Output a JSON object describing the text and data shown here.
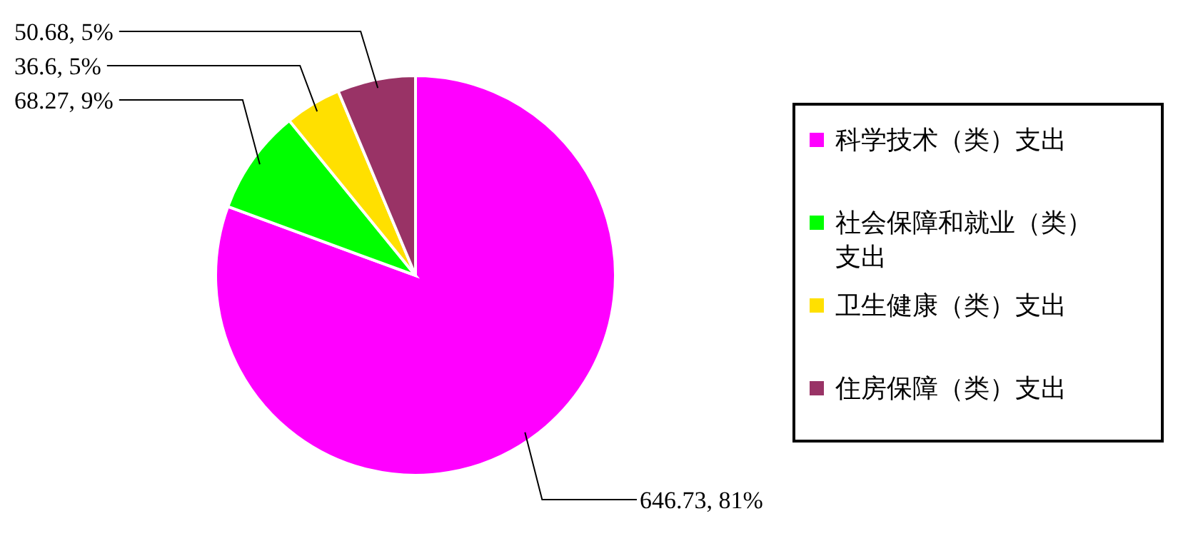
{
  "chart_data": {
    "type": "pie",
    "categories": [
      "科学技术（类）支出",
      "社会保障和就业（类）支出",
      "卫生健康（类）支出",
      "住房保障（类）支出"
    ],
    "values": [
      646.73,
      68.27,
      36.6,
      50.68
    ],
    "colors": [
      "#ff00ff",
      "#00ff00",
      "#ffe000",
      "#993366"
    ],
    "value_labels": [
      "646.73, 81%",
      "68.27, 9%",
      "36.6, 5%",
      "50.68, 5%"
    ],
    "legend": "right"
  }
}
